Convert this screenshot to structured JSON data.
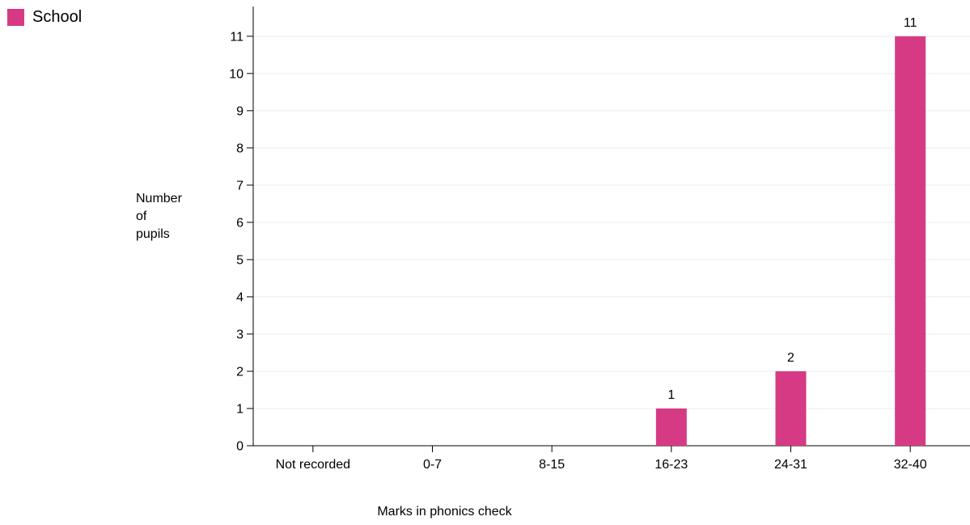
{
  "chart_data": {
    "type": "bar",
    "title": "",
    "legend": {
      "position": "top-left",
      "entries": [
        "School"
      ]
    },
    "xlabel": "Marks in phonics check",
    "ylabel": "Number of pupils",
    "ylabel_lines": [
      "Number",
      "of",
      "pupils"
    ],
    "categories": [
      "Not recorded",
      "0-7",
      "8-15",
      "16-23",
      "24-31",
      "32-40"
    ],
    "series": [
      {
        "name": "School",
        "values": [
          0,
          0,
          0,
          1,
          2,
          11
        ],
        "color": "#d63a85"
      }
    ],
    "data_labels": [
      "",
      "",
      "",
      "1",
      "2",
      "11"
    ],
    "ylim": [
      0,
      11.8
    ],
    "yticks": [
      0,
      1,
      2,
      3,
      4,
      5,
      6,
      7,
      8,
      9,
      10,
      11
    ],
    "grid": true
  }
}
